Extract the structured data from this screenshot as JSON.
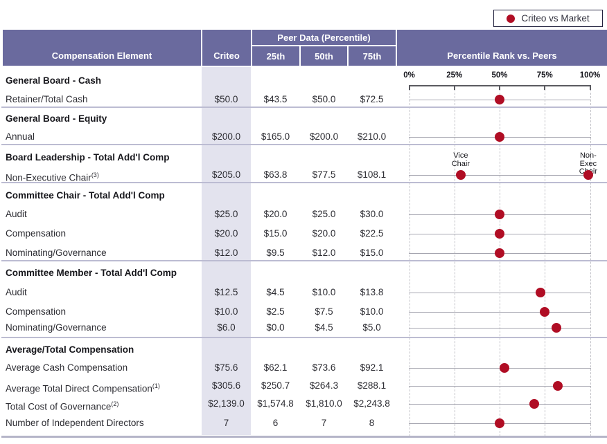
{
  "legend": {
    "label": "Criteo vs Market",
    "dot_color": "#b00d24"
  },
  "table": {
    "header": {
      "compensation_element": "Compensation Element",
      "criteo": "Criteo",
      "peer_data_group": "Peer Data (Percentile)",
      "p25": "25th",
      "p50": "50th",
      "p75": "75th",
      "percentile_rank": "Percentile Rank vs. Peers"
    },
    "sections": [
      {
        "title": "General Board - Cash",
        "rows": [
          {
            "label": "Retainer/Total Cash",
            "sup": "",
            "criteo": "$50.0",
            "p25": "$43.5",
            "p50": "$50.0",
            "p75": "$72.5",
            "dots": [
              {
                "pct": 50,
                "annotation": ""
              }
            ]
          }
        ]
      },
      {
        "title": "General Board - Equity",
        "rows": [
          {
            "label": "Annual",
            "sup": "",
            "criteo": "$200.0",
            "p25": "$165.0",
            "p50": "$200.0",
            "p75": "$210.0",
            "dots": [
              {
                "pct": 50,
                "annotation": ""
              }
            ]
          }
        ]
      },
      {
        "title": "Board Leadership - Total Add'l Comp",
        "rows": [
          {
            "label": "Non-Executive Chair",
            "sup": "(3)",
            "criteo": "$205.0",
            "p25": "$63.8",
            "p50": "$77.5",
            "p75": "$108.1",
            "dots": [
              {
                "pct": 28.5,
                "annotation": "Vice\nChair"
              },
              {
                "pct": 99,
                "annotation": "Non-Exec\nChair"
              }
            ]
          }
        ]
      },
      {
        "title": "Committee Chair - Total Add'l Comp",
        "rows": [
          {
            "label": "Audit",
            "sup": "",
            "criteo": "$25.0",
            "p25": "$20.0",
            "p50": "$25.0",
            "p75": "$30.0",
            "dots": [
              {
                "pct": 50,
                "annotation": ""
              }
            ]
          },
          {
            "label": "Compensation",
            "sup": "",
            "criteo": "$20.0",
            "p25": "$15.0",
            "p50": "$20.0",
            "p75": "$22.5",
            "dots": [
              {
                "pct": 50,
                "annotation": ""
              }
            ]
          },
          {
            "label": "Nominating/Governance",
            "sup": "",
            "criteo": "$12.0",
            "p25": "$9.5",
            "p50": "$12.0",
            "p75": "$15.0",
            "dots": [
              {
                "pct": 50,
                "annotation": ""
              }
            ]
          }
        ]
      },
      {
        "title": "Committee Member - Total Add'l Comp",
        "rows": [
          {
            "label": "Audit",
            "sup": "",
            "criteo": "$12.5",
            "p25": "$4.5",
            "p50": "$10.0",
            "p75": "$13.8",
            "dots": [
              {
                "pct": 72.5,
                "annotation": ""
              }
            ]
          },
          {
            "label": "Compensation",
            "sup": "",
            "criteo": "$10.0",
            "p25": "$2.5",
            "p50": "$7.5",
            "p75": "$10.0",
            "dots": [
              {
                "pct": 75,
                "annotation": ""
              }
            ]
          },
          {
            "label": "Nominating/Governance",
            "sup": "",
            "criteo": "$6.0",
            "p25": "$0.0",
            "p50": "$4.5",
            "p75": "$5.0",
            "dots": [
              {
                "pct": 81.5,
                "annotation": ""
              }
            ]
          }
        ]
      },
      {
        "title": "Average/Total Compensation",
        "rows": [
          {
            "label": "Average Cash Compensation",
            "sup": "",
            "criteo": "$75.6",
            "p25": "$62.1",
            "p50": "$73.6",
            "p75": "$92.1",
            "dots": [
              {
                "pct": 52.5,
                "annotation": ""
              }
            ]
          },
          {
            "label": "Average Total Direct Compensation",
            "sup": "(1)",
            "criteo": "$305.6",
            "p25": "$250.7",
            "p50": "$264.3",
            "p75": "$288.1",
            "dots": [
              {
                "pct": 82,
                "annotation": ""
              }
            ]
          },
          {
            "label": "Total Cost of Governance",
            "sup": "(2)",
            "criteo": "$2,139.0",
            "p25": "$1,574.8",
            "p50": "$1,810.0",
            "p75": "$2,243.8",
            "dots": [
              {
                "pct": 69,
                "annotation": ""
              }
            ]
          },
          {
            "label": "Number of Independent Directors",
            "sup": "",
            "criteo": "7",
            "p25": "6",
            "p50": "7",
            "p75": "8",
            "dots": [
              {
                "pct": 50,
                "annotation": ""
              }
            ]
          }
        ]
      }
    ]
  },
  "axis": {
    "ticks": [
      "0%",
      "25%",
      "50%",
      "75%",
      "100%"
    ],
    "tick_pcts": [
      0,
      25,
      50,
      75,
      100
    ]
  },
  "chart_data": {
    "type": "scatter",
    "title": "Percentile Rank vs. Peers",
    "legend": [
      "Criteo vs Market"
    ],
    "xlabel": "",
    "ylabel": "",
    "x_axis": {
      "range": [
        0,
        100
      ],
      "tick_labels": [
        "0%",
        "25%",
        "50%",
        "75%",
        "100%"
      ],
      "unit": "percentile"
    },
    "grid": "dashed-vertical",
    "legend_position": "top-right",
    "points": [
      {
        "category": "Retainer/Total Cash",
        "percentile": 50
      },
      {
        "category": "Annual",
        "percentile": 50
      },
      {
        "category": "Non-Executive Chair (Vice Chair)",
        "percentile": 28.5
      },
      {
        "category": "Non-Executive Chair (Non-Exec Chair)",
        "percentile": 99
      },
      {
        "category": "Committee Chair - Audit",
        "percentile": 50
      },
      {
        "category": "Committee Chair - Compensation",
        "percentile": 50
      },
      {
        "category": "Committee Chair - Nominating/Governance",
        "percentile": 50
      },
      {
        "category": "Committee Member - Audit",
        "percentile": 72.5
      },
      {
        "category": "Committee Member - Compensation",
        "percentile": 75
      },
      {
        "category": "Committee Member - Nominating/Governance",
        "percentile": 81.5
      },
      {
        "category": "Average Cash Compensation",
        "percentile": 52.5
      },
      {
        "category": "Average Total Direct Compensation",
        "percentile": 82
      },
      {
        "category": "Total Cost of Governance",
        "percentile": 69
      },
      {
        "category": "Number of Independent Directors",
        "percentile": 50
      }
    ]
  },
  "colors": {
    "header_bg": "#6a6a9e",
    "criteo_column_bg": "#e3e3ee",
    "dot": "#b00d24",
    "divider": "#bcbcd2"
  }
}
